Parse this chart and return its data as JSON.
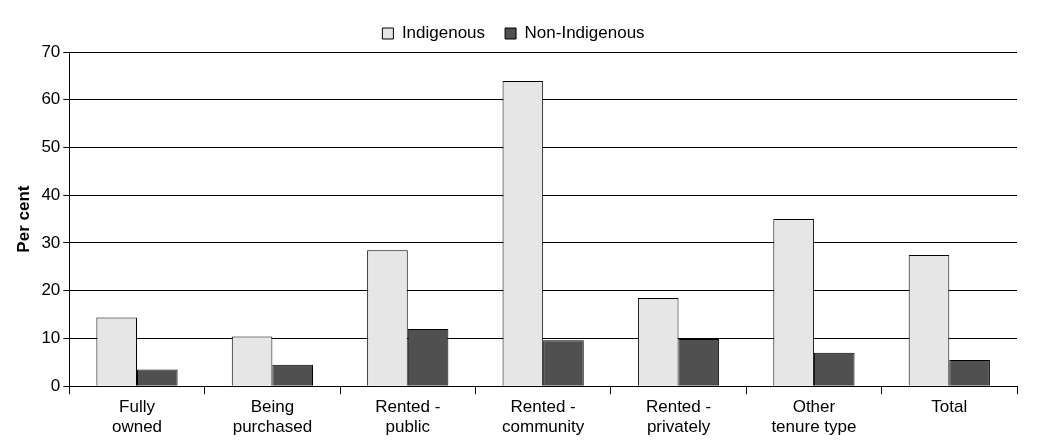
{
  "chart_data": {
    "type": "bar",
    "ylabel": "Per cent",
    "categories": [
      "Fully\nowned",
      "Being\npurchased",
      "Rented -\npublic",
      "Rented -\ncommunity",
      "Rented -\nprivately",
      "Other\ntenure type",
      "Total"
    ],
    "series": [
      {
        "name": "Indigenous",
        "color": "#e6e6e6",
        "values": [
          14.4,
          10.4,
          28.5,
          63.9,
          18.5,
          35.0,
          27.5
        ]
      },
      {
        "name": "Non-Indigenous",
        "color": "#505050",
        "values": [
          3.5,
          4.5,
          12.0,
          9.6,
          9.9,
          7.0,
          5.5
        ]
      }
    ],
    "ylim": [
      0,
      70
    ],
    "yticks": [
      0,
      10,
      20,
      30,
      40,
      50,
      60,
      70
    ],
    "grid": "y",
    "legend": "top"
  }
}
